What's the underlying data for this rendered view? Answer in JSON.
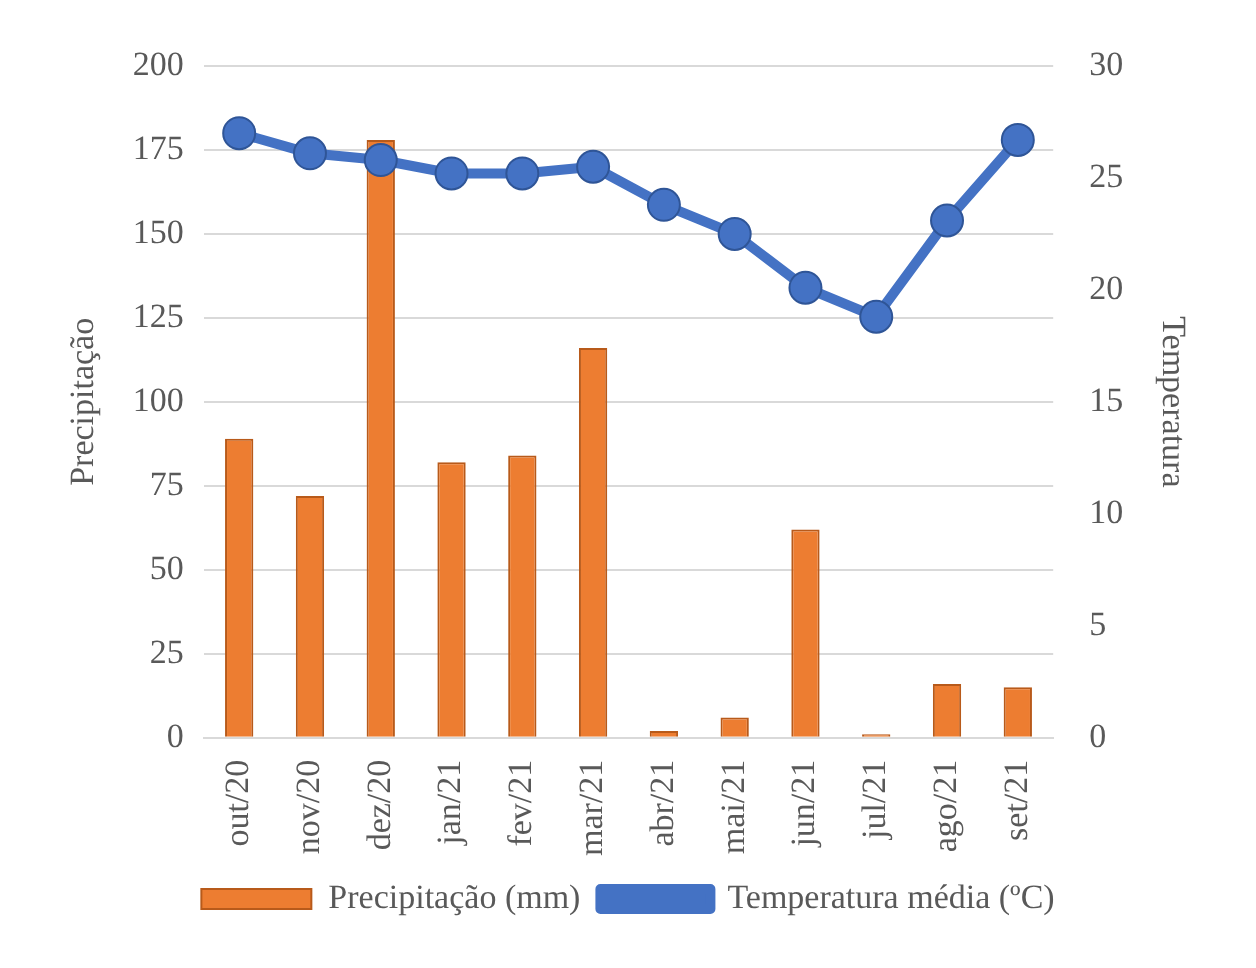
{
  "chart_data": {
    "type": "bar",
    "ylabel": "Precipitação",
    "y2label": "Temperatura",
    "categories": [
      "out/20",
      "nov/20",
      "dez/20",
      "jan/21",
      "fev/21",
      "mar/21",
      "abr/21",
      "mai/21",
      "jun/21",
      "jul/21",
      "ago/21",
      "set/21"
    ],
    "series": [
      {
        "name": "Precipitação (mm)",
        "color": "#ed7d31",
        "values": [
          89,
          72,
          178,
          82,
          84,
          116,
          2,
          6,
          62,
          1,
          16,
          15
        ]
      },
      {
        "name": "Temperatura média (ºC)",
        "type": "line",
        "axis": "y2",
        "color": "#4472c4",
        "marker": "circle",
        "values": [
          27.0,
          26.1,
          25.8,
          25.2,
          25.2,
          25.5,
          23.8,
          22.5,
          20.1,
          18.8,
          23.1,
          26.7
        ]
      }
    ],
    "ylim": [
      0,
      200
    ],
    "yticks": [
      0,
      25,
      50,
      75,
      100,
      125,
      150,
      175,
      200
    ],
    "y2lim": [
      0,
      30
    ],
    "y2ticks": [
      0,
      5,
      10,
      15,
      20,
      25,
      30
    ],
    "grid": "y",
    "legend": "bottom"
  }
}
